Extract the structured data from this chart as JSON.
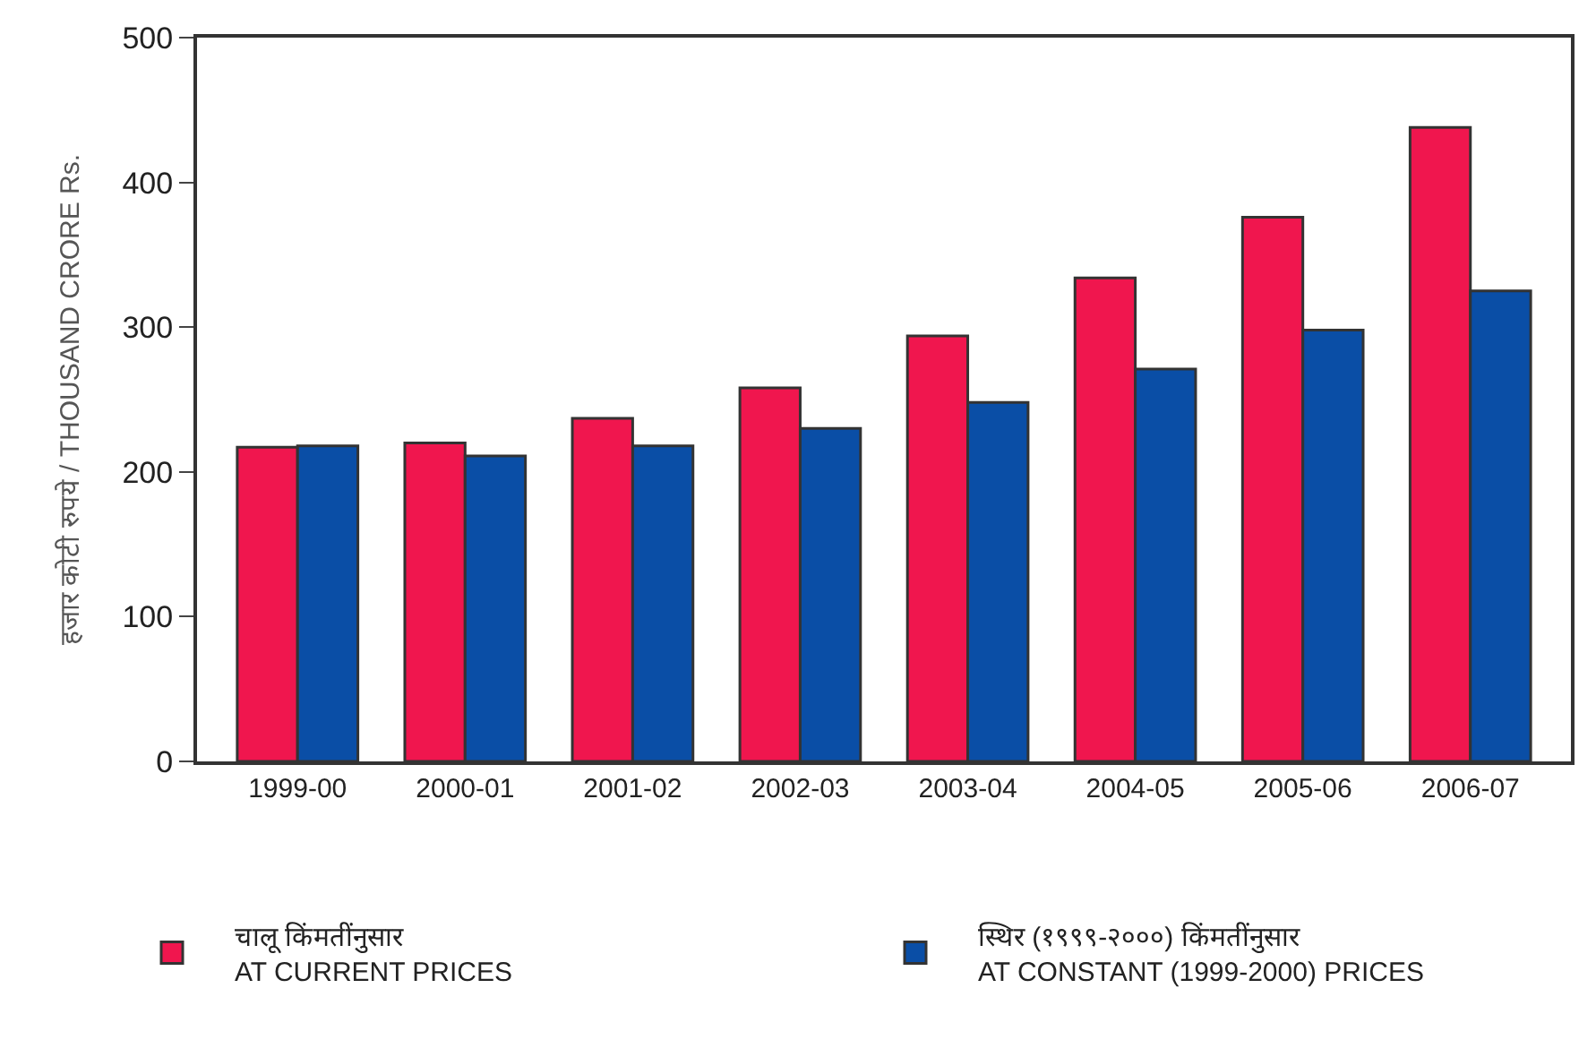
{
  "chart_data": {
    "type": "bar",
    "ylabel": "हजार कोटी रुपये / THOUSAND CRORE Rs.",
    "categories": [
      "1999-00",
      "2000-01",
      "2001-02",
      "2002-03",
      "2003-04",
      "2004-05",
      "2005-06",
      "2006-07"
    ],
    "series": [
      {
        "name": "चालू किंमतींनुसार\nAT CURRENT PRICES",
        "color": "#f0164e",
        "values": [
          217,
          220,
          237,
          258,
          294,
          334,
          376,
          438
        ]
      },
      {
        "name": "स्थिर (१९९९-२०००) किंमतींनुसार\nAT CONSTANT (1999-2000) PRICES",
        "color": "#0a4ea6",
        "values": [
          218,
          211,
          218,
          230,
          248,
          271,
          298,
          325
        ]
      }
    ],
    "ylim": [
      0,
      500
    ],
    "yticks": [
      0,
      100,
      200,
      300,
      400,
      500
    ],
    "legend": "bottom"
  }
}
